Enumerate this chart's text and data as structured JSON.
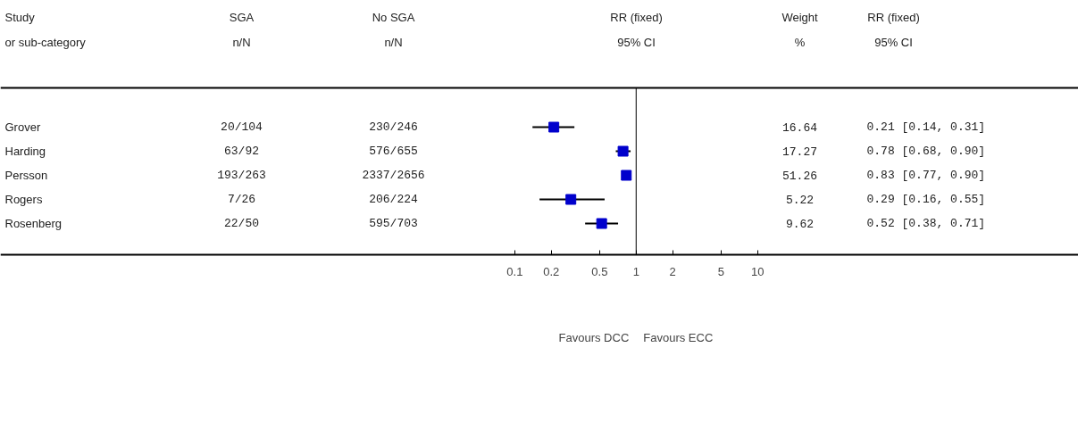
{
  "chart_data": {
    "type": "scatter",
    "orientation": "horizontal",
    "log": "x",
    "title": "RR (fixed)\n95% CI",
    "categories": [
      "Grover",
      "Harding",
      "Persson",
      "Rogers",
      "Rosenberg"
    ],
    "series": [
      {
        "color": "#0000cc",
        "values": [
          0.21,
          0.78,
          0.83,
          0.29,
          0.52
        ],
        "errors": [
          [
            0.14,
            0.31
          ],
          [
            0.68,
            0.9
          ],
          [
            0.77,
            0.9
          ],
          [
            0.16,
            0.55
          ],
          [
            0.38,
            0.71
          ]
        ]
      }
    ],
    "xlim": [
      5.8e-06,
      4400
    ],
    "xticks": [
      0.1,
      0.2,
      0.5,
      1,
      2,
      5,
      10
    ],
    "ref_lines": [
      {
        "axis": "x",
        "value": 1
      }
    ],
    "marker": "square",
    "grid": false,
    "annotations": [
      "Study\nor sub-category",
      "SGA\nn/N",
      "No SGA\nn/N",
      "Weight\n%",
      "RR (fixed)\n95% CI",
      "Favours DCC",
      "Favours ECC",
      "20/104",
      "230/246",
      "16.64",
      "0.21 [0.14, 0.31]",
      "63/92",
      "576/655",
      "17.27",
      "0.78 [0.68, 0.90]",
      "193/263",
      "2337/2656",
      "51.26",
      "0.83 [0.77, 0.90]",
      "7/26",
      "206/224",
      "5.22",
      "0.29 [0.16, 0.55]",
      "22/50",
      "595/703",
      "9.62",
      "0.52 [0.38, 0.71]"
    ]
  }
}
